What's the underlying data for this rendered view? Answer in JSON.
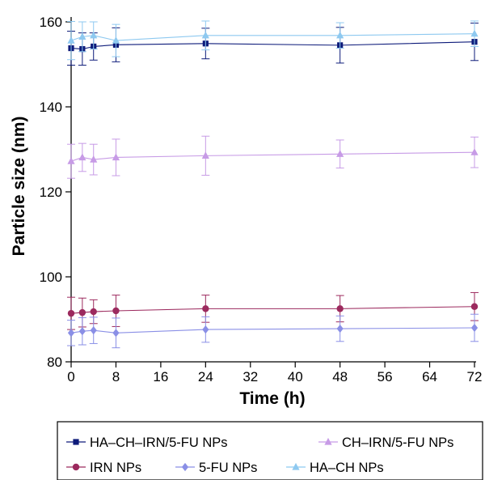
{
  "chart_data": {
    "type": "line",
    "xlabel": "Time (h)",
    "ylabel": "Particle size (nm)",
    "xlim": [
      0,
      72
    ],
    "ylim": [
      80,
      160
    ],
    "xticks": [
      0,
      8,
      16,
      24,
      32,
      40,
      48,
      56,
      64,
      72
    ],
    "yticks": [
      80,
      100,
      120,
      140,
      160
    ],
    "grid": false,
    "legend_position": "bottom",
    "x": [
      0,
      2,
      4,
      8,
      24,
      48,
      72
    ],
    "series": [
      {
        "name": "HA–CH–IRN/5-FU NPs",
        "color": "#0d1b7a",
        "marker": "square",
        "values": [
          153.8,
          153.6,
          154.2,
          154.6,
          154.9,
          154.5,
          155.3
        ],
        "errors": [
          4.0,
          3.8,
          3.2,
          4.0,
          3.6,
          4.2,
          4.4
        ]
      },
      {
        "name": "CH–IRN/5-FU NPs",
        "color": "#c79be6",
        "marker": "triangle",
        "values": [
          127.2,
          128.1,
          127.6,
          128.1,
          128.5,
          128.9,
          129.3
        ],
        "errors": [
          4.0,
          3.3,
          3.6,
          4.3,
          4.6,
          3.3,
          3.6
        ]
      },
      {
        "name": "IRN NPs",
        "color": "#9c2a5e",
        "marker": "circle",
        "values": [
          91.4,
          91.6,
          91.8,
          92.0,
          92.5,
          92.5,
          93.0
        ],
        "errors": [
          3.8,
          3.4,
          2.8,
          3.7,
          3.2,
          3.1,
          3.3
        ]
      },
      {
        "name": "5-FU NPs",
        "color": "#8a8fe6",
        "marker": "diamond",
        "values": [
          86.8,
          87.2,
          87.4,
          86.8,
          87.6,
          87.8,
          88.0
        ],
        "errors": [
          3.0,
          3.2,
          3.1,
          3.5,
          3.0,
          3.0,
          3.2
        ]
      },
      {
        "name": "HA–CH NPs",
        "color": "#8ec9f0",
        "marker": "triangle",
        "values": [
          155.6,
          156.5,
          156.8,
          155.6,
          156.8,
          156.8,
          157.2
        ],
        "errors": [
          4.5,
          3.5,
          3.2,
          3.8,
          3.4,
          3.0,
          3.0
        ]
      }
    ]
  }
}
